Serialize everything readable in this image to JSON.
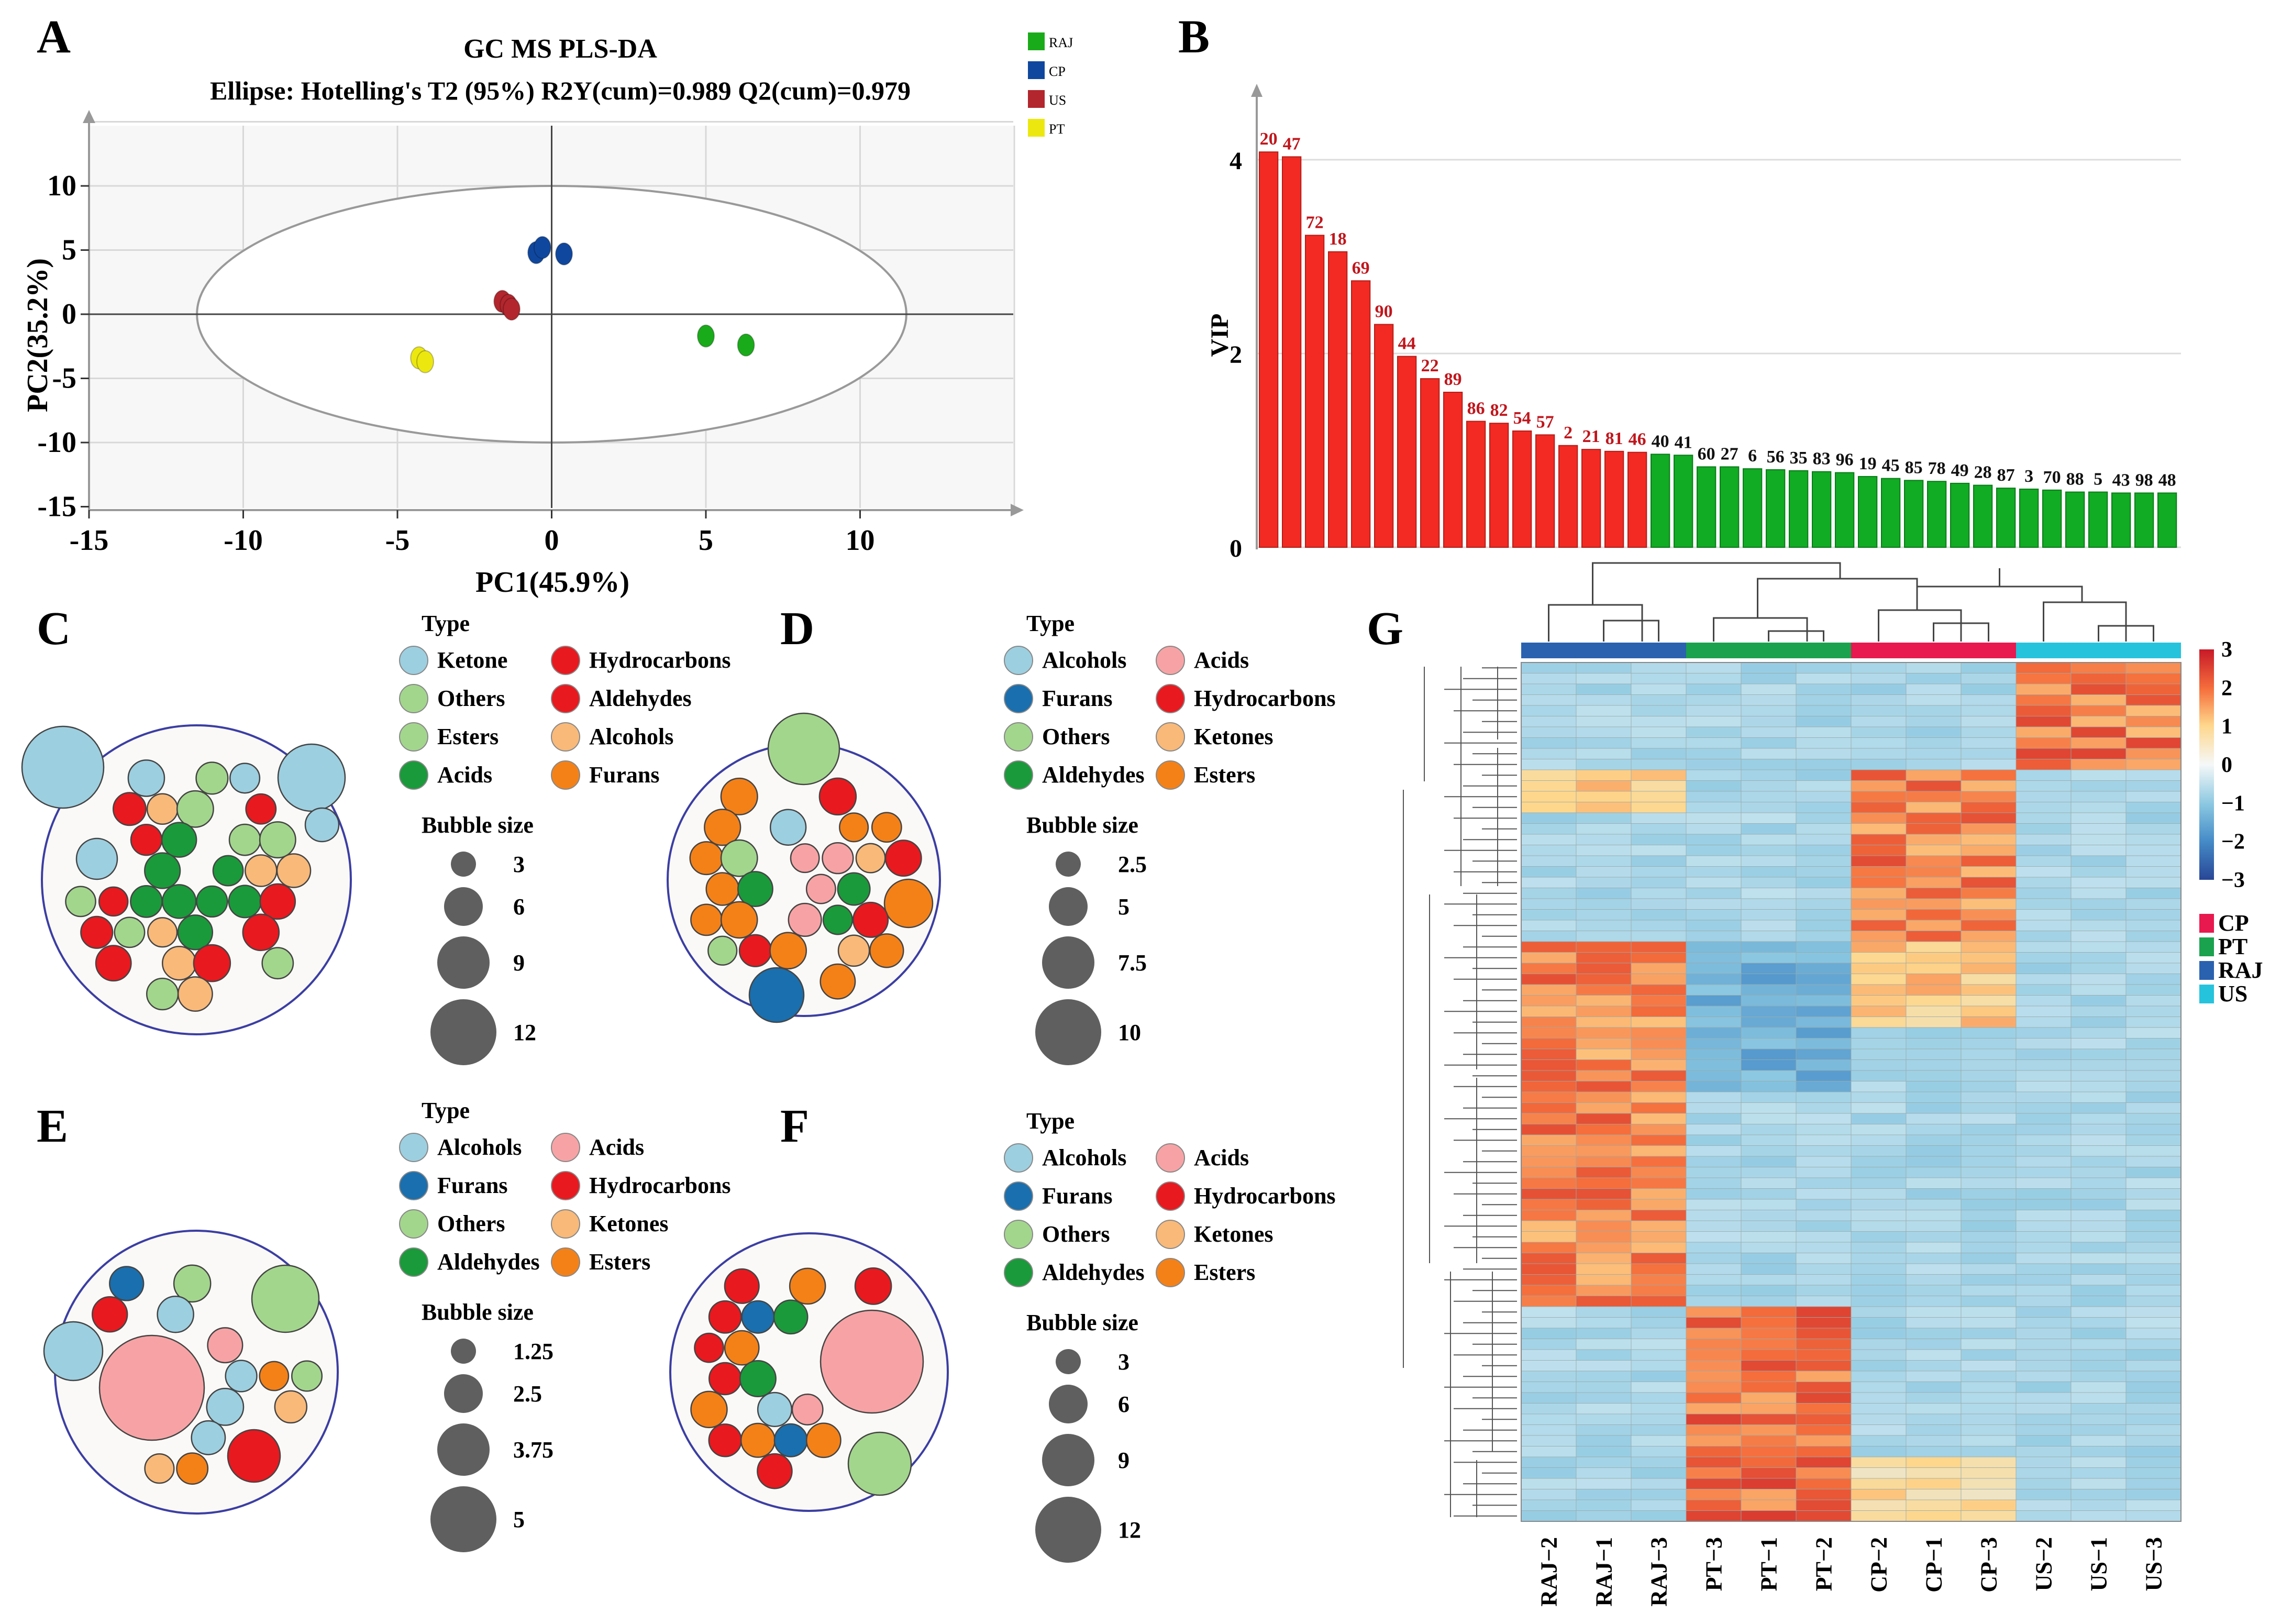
{
  "panels": {
    "a": "A",
    "b": "B",
    "c": "C",
    "d": "D",
    "e": "E",
    "f": "F",
    "g": "G"
  },
  "colors": {
    "RAJ": "#1aab1a",
    "CP": "#10479e",
    "US": "#b3262d",
    "PT": "#ece80f",
    "red_bar": "#f32a23",
    "green_bar": "#11ab24",
    "light_blue": "#9ccfe0",
    "dark_blue": "#1a6fae",
    "light_green": "#a3d68d",
    "dark_green": "#1a9a3a",
    "pink": "#f7a3a5",
    "red": "#e8191f",
    "light_orange": "#f9b979",
    "orange": "#f48118",
    "grp_CP": "#e8194e",
    "grp_PT": "#1aa24e",
    "grp_RAJ": "#2a62b0",
    "grp_US": "#26c3dc"
  },
  "chart_data": [
    {
      "id": "A",
      "type": "scatter",
      "title": "GC MS PLS-DA",
      "subtitle": "Ellipse: Hotelling's T2 (95%) R2Y(cum)=0.989 Q2(cum)=0.979",
      "xlabel": "PC1(45.9%)",
      "ylabel": "PC2(35.2%)",
      "xlim": [
        -15,
        15
      ],
      "ylim": [
        -15,
        15
      ],
      "xticks": [
        -15,
        -10,
        -5,
        0,
        5,
        10
      ],
      "yticks": [
        10,
        5,
        0,
        -5,
        -10,
        -15
      ],
      "ellipse": {
        "cx": 0,
        "cy": 0,
        "rx": 11.5,
        "ry": 10
      },
      "legend": [
        "RAJ",
        "CP",
        "US",
        "PT"
      ],
      "series": [
        {
          "name": "RAJ",
          "points": [
            [
              5.0,
              -1.7
            ],
            [
              6.3,
              -2.4
            ]
          ]
        },
        {
          "name": "CP",
          "points": [
            [
              -0.5,
              4.8
            ],
            [
              -0.3,
              5.2
            ],
            [
              0.4,
              4.7
            ]
          ]
        },
        {
          "name": "US",
          "points": [
            [
              -1.6,
              1.0
            ],
            [
              -1.4,
              0.7
            ],
            [
              -1.3,
              0.4
            ]
          ]
        },
        {
          "name": "PT",
          "points": [
            [
              -4.3,
              -3.4
            ],
            [
              -4.1,
              -3.7
            ]
          ]
        }
      ]
    },
    {
      "id": "B",
      "type": "bar",
      "ylabel": "VIP",
      "ylim": [
        0,
        4.6
      ],
      "yticks": [
        0,
        2,
        4
      ],
      "categories": [
        "20",
        "47",
        "72",
        "18",
        "69",
        "90",
        "44",
        "22",
        "89",
        "86",
        "82",
        "54",
        "57",
        "2",
        "21",
        "81",
        "46",
        "40",
        "41",
        "60",
        "27",
        "6",
        "56",
        "35",
        "83",
        "96",
        "19",
        "45",
        "85",
        "78",
        "49",
        "28",
        "87",
        "3",
        "70",
        "88",
        "5",
        "43",
        "98",
        "48"
      ],
      "values": [
        4.08,
        4.03,
        3.22,
        3.05,
        2.75,
        2.3,
        1.97,
        1.74,
        1.6,
        1.3,
        1.28,
        1.2,
        1.16,
        1.05,
        1.01,
        0.99,
        0.98,
        0.96,
        0.95,
        0.83,
        0.83,
        0.81,
        0.8,
        0.79,
        0.78,
        0.77,
        0.73,
        0.71,
        0.69,
        0.68,
        0.66,
        0.64,
        0.61,
        0.6,
        0.59,
        0.57,
        0.57,
        0.56,
        0.56,
        0.56
      ],
      "red_count": 17
    },
    {
      "id": "C",
      "type": "bubble",
      "legend_title": "Type",
      "size_title": "Bubble size",
      "types": [
        "Ketone",
        "Hydrocarbons",
        "Others",
        "Aldehydes",
        "Esters",
        "Alcohols",
        "Acids",
        "Furans"
      ],
      "sizes": [
        "3",
        "6",
        "9",
        "12"
      ]
    },
    {
      "id": "D",
      "type": "bubble",
      "legend_title": "Type",
      "size_title": "Bubble size",
      "types": [
        "Alcohols",
        "Acids",
        "Furans",
        "Hydrocarbons",
        "Others",
        "Ketones",
        "Aldehydes",
        "Esters"
      ],
      "sizes": [
        "2.5",
        "5",
        "7.5",
        "10"
      ]
    },
    {
      "id": "E",
      "type": "bubble",
      "legend_title": "Type",
      "size_title": "Bubble size",
      "types": [
        "Alcohols",
        "Acids",
        "Furans",
        "Hydrocarbons",
        "Others",
        "Ketones",
        "Aldehydes",
        "Esters"
      ],
      "sizes": [
        "1.25",
        "2.5",
        "3.75",
        "5"
      ]
    },
    {
      "id": "F",
      "type": "bubble",
      "legend_title": "Type",
      "size_title": "Bubble size",
      "types": [
        "Alcohols",
        "Acids",
        "Furans",
        "Hydrocarbons",
        "Others",
        "Ketones",
        "Aldehydes",
        "Esters"
      ],
      "sizes": [
        "3",
        "6",
        "9",
        "12"
      ]
    },
    {
      "id": "G",
      "type": "heatmap",
      "columns": [
        "RAJ−2",
        "RAJ−1",
        "RAJ−3",
        "PT−3",
        "PT−1",
        "PT−2",
        "CP−2",
        "CP−1",
        "CP−3",
        "US−2",
        "US−1",
        "US−3"
      ],
      "column_groups": [
        "RAJ",
        "RAJ",
        "RAJ",
        "PT",
        "PT",
        "PT",
        "CP",
        "CP",
        "CP",
        "US",
        "US",
        "US"
      ],
      "scale": [
        3,
        2,
        1,
        0,
        -1,
        -2,
        -3
      ],
      "scale_labels": [
        "3",
        "2",
        "1",
        "0",
        "−1",
        "−2",
        "−3"
      ],
      "group_legend": [
        "CP",
        "PT",
        "RAJ",
        "US"
      ],
      "rows": 80
    }
  ]
}
